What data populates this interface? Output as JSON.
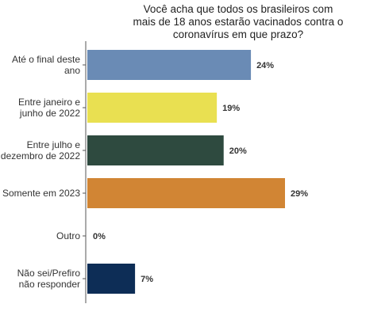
{
  "chart_data": {
    "type": "bar",
    "orientation": "horizontal",
    "title_lines": [
      "Você acha que todos os brasileiros com",
      "mais de 18 anos estarão vacinados contra o",
      "coronavírus em que prazo?"
    ],
    "categories": [
      [
        "Até o final deste",
        "ano"
      ],
      [
        "Entre janeiro e",
        "junho de 2022"
      ],
      [
        "Entre julho e",
        "dezembro de 2022"
      ],
      [
        "Somente em 2023"
      ],
      [
        "Outro"
      ],
      [
        "Não sei/Prefiro",
        "não responder"
      ]
    ],
    "values": [
      24,
      19,
      20,
      29,
      0,
      7
    ],
    "value_labels": [
      "24%",
      "19%",
      "20%",
      "29%",
      "0%",
      "7%"
    ],
    "colors": [
      "#6a8bb5",
      "#e9e051",
      "#2e4a3f",
      "#d18534",
      "#cccccc",
      "#0d2d56"
    ],
    "xlim": [
      0,
      29
    ],
    "grid": false
  }
}
